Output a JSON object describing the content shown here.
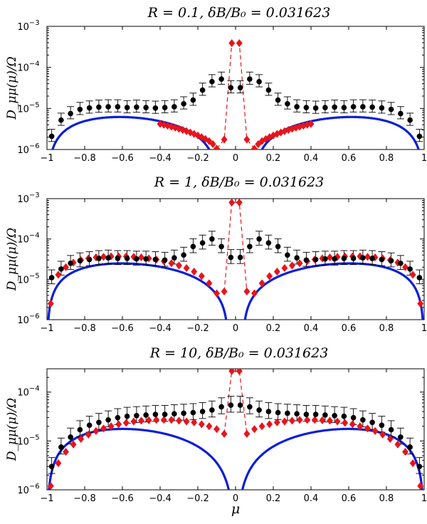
{
  "chart_data": [
    {
      "type": "scatter",
      "title": "R = 0.1, δB/B₀ = 0.031623",
      "ylabel": "D_μμ(μ)/Ω",
      "xlabel": "",
      "xlim": [
        -1,
        1
      ],
      "ylim": [
        1e-06,
        0.001
      ],
      "yscale": "log",
      "x_ticks": [
        "−1",
        "−0.8",
        "−0.6",
        "−0.4",
        "−0.2",
        "0",
        "0.2",
        "0.4",
        "0.6",
        "0.8",
        "1"
      ],
      "y_ticks": [
        {
          "base": "10",
          "exp": "−6"
        },
        {
          "base": "10",
          "exp": "−5"
        },
        {
          "base": "10",
          "exp": "−4"
        },
        {
          "base": "10",
          "exp": "−3"
        }
      ],
      "colors": {
        "theory": "#0a1fd6",
        "diamonds": "#e8141b",
        "points": "#000000"
      },
      "theory": {
        "amp": 9.5e-06,
        "cutoff": 0.1
      },
      "points": {
        "x": [
          -0.975,
          -0.925,
          -0.875,
          -0.825,
          -0.775,
          -0.725,
          -0.675,
          -0.625,
          -0.575,
          -0.525,
          -0.475,
          -0.425,
          -0.375,
          -0.325,
          -0.275,
          -0.225,
          -0.175,
          -0.125,
          -0.075,
          -0.025,
          0.025,
          0.075,
          0.125,
          0.175,
          0.225,
          0.275,
          0.325,
          0.375,
          0.425,
          0.475,
          0.525,
          0.575,
          0.625,
          0.675,
          0.725,
          0.775,
          0.825,
          0.875,
          0.925,
          0.975
        ],
        "y": [
          2.1e-06,
          5.2e-06,
          7.5e-06,
          9.5e-06,
          1.03e-05,
          1.08e-05,
          1.1e-05,
          1.1e-05,
          1.05e-05,
          1.08e-05,
          1.05e-05,
          1.02e-05,
          1.05e-05,
          1.1e-05,
          1.3e-05,
          1.6e-05,
          2.8e-05,
          4.5e-05,
          5.2e-05,
          3.2e-05,
          3.2e-05,
          5.2e-05,
          4.5e-05,
          2.8e-05,
          1.6e-05,
          1.3e-05,
          1.1e-05,
          1.05e-05,
          1.02e-05,
          1.05e-05,
          1.08e-05,
          1.05e-05,
          1.1e-05,
          1.1e-05,
          1.08e-05,
          1.03e-05,
          9.5e-06,
          7.5e-06,
          5.2e-06,
          2.1e-06
        ],
        "err_factor": 0.3
      },
      "diamonds": {
        "x": [
          -0.4,
          -0.38,
          -0.36,
          -0.34,
          -0.32,
          -0.3,
          -0.28,
          -0.26,
          -0.24,
          -0.22,
          -0.2,
          -0.18,
          -0.16,
          -0.14,
          -0.12,
          -0.1,
          -0.06,
          -0.02,
          0.02,
          0.06,
          0.1,
          0.12,
          0.14,
          0.16,
          0.18,
          0.2,
          0.22,
          0.24,
          0.26,
          0.28,
          0.3,
          0.32,
          0.34,
          0.36,
          0.38,
          0.4
        ],
        "y": [
          4.2e-06,
          4e-06,
          3.8e-06,
          3.6e-06,
          3.4e-06,
          3.2e-06,
          3e-06,
          2.8e-06,
          2.6e-06,
          2.4e-06,
          2.2e-06,
          2e-06,
          1.8e-06,
          1.6e-06,
          1.35e-06,
          1.05e-06,
          1.75e-06,
          0.00039,
          0.00039,
          1.75e-06,
          1.05e-06,
          1.35e-06,
          1.6e-06,
          1.8e-06,
          2e-06,
          2.2e-06,
          2.4e-06,
          2.6e-06,
          2.8e-06,
          3e-06,
          3.2e-06,
          3.4e-06,
          3.6e-06,
          3.8e-06,
          4e-06,
          4.2e-06
        ],
        "dashed_core": [
          -0.06,
          -0.02,
          0.02,
          0.06
        ]
      }
    },
    {
      "type": "scatter",
      "title": "R = 1, δB/B₀ = 0.031623",
      "ylabel": "D_μμ(μ)/Ω",
      "xlabel": "",
      "xlim": [
        -1,
        1
      ],
      "ylim": [
        1e-06,
        0.001
      ],
      "yscale": "log",
      "x_ticks": [
        "−1",
        "−0.8",
        "−0.6",
        "−0.4",
        "−0.2",
        "0",
        "0.2",
        "0.4",
        "0.6",
        "0.8",
        "1"
      ],
      "y_ticks": [
        {
          "base": "10",
          "exp": "−6"
        },
        {
          "base": "10",
          "exp": "−5"
        },
        {
          "base": "10",
          "exp": "−4"
        },
        {
          "base": "10",
          "exp": "−3"
        }
      ],
      "colors": {
        "theory": "#0a1fd6",
        "diamonds": "#e8141b",
        "points": "#000000"
      },
      "theory": {
        "amp": 3.7e-05,
        "cutoff": 0.04
      },
      "points": {
        "x": [
          -0.975,
          -0.925,
          -0.875,
          -0.825,
          -0.775,
          -0.725,
          -0.675,
          -0.625,
          -0.575,
          -0.525,
          -0.475,
          -0.425,
          -0.375,
          -0.325,
          -0.275,
          -0.225,
          -0.175,
          -0.125,
          -0.075,
          -0.025,
          0.025,
          0.075,
          0.125,
          0.175,
          0.225,
          0.275,
          0.325,
          0.375,
          0.425,
          0.475,
          0.525,
          0.575,
          0.625,
          0.675,
          0.725,
          0.775,
          0.825,
          0.875,
          0.925,
          0.975
        ],
        "y": [
          1.1e-05,
          1.8e-05,
          2.5e-05,
          2.9e-05,
          3.1e-05,
          3.3e-05,
          3.4e-05,
          3.3e-05,
          3.3e-05,
          3.2e-05,
          3.2e-05,
          3.1e-05,
          3e-05,
          3.4e-05,
          4e-05,
          6.5e-05,
          8e-05,
          0.0001,
          6.5e-05,
          3.5e-05,
          3.5e-05,
          6.5e-05,
          0.0001,
          8e-05,
          6.5e-05,
          4e-05,
          3.4e-05,
          3e-05,
          3.1e-05,
          3.2e-05,
          3.2e-05,
          3.3e-05,
          3.3e-05,
          3.4e-05,
          3.3e-05,
          3.1e-05,
          2.9e-05,
          2.5e-05,
          1.8e-05,
          1.1e-05
        ],
        "err_factor": 0.35
      },
      "diamonds": {
        "x": [
          -0.98,
          -0.94,
          -0.9,
          -0.86,
          -0.82,
          -0.78,
          -0.74,
          -0.7,
          -0.66,
          -0.62,
          -0.58,
          -0.54,
          -0.5,
          -0.46,
          -0.42,
          -0.38,
          -0.34,
          -0.3,
          -0.26,
          -0.22,
          -0.18,
          -0.14,
          -0.1,
          -0.06,
          -0.02,
          0.02,
          0.06,
          0.1,
          0.14,
          0.18,
          0.22,
          0.26,
          0.3,
          0.34,
          0.38,
          0.42,
          0.46,
          0.5,
          0.54,
          0.58,
          0.62,
          0.66,
          0.7,
          0.74,
          0.78,
          0.82,
          0.86,
          0.9,
          0.94,
          0.98
        ],
        "y": [
          2.5e-06,
          1.3e-05,
          2e-05,
          2.6e-05,
          3e-05,
          3.3e-05,
          3.5e-05,
          3.6e-05,
          3.7e-05,
          3.7e-05,
          3.7e-05,
          3.6e-05,
          3.5e-05,
          3.3e-05,
          3.1e-05,
          2.8e-05,
          2.5e-05,
          2.2e-05,
          1.9e-05,
          1.55e-05,
          1.2e-05,
          8e-06,
          4.5e-06,
          5e-06,
          0.0008,
          0.0008,
          5e-06,
          4.5e-06,
          8e-06,
          1.2e-05,
          1.55e-05,
          1.9e-05,
          2.2e-05,
          2.5e-05,
          2.8e-05,
          3.1e-05,
          3.3e-05,
          3.5e-05,
          3.6e-05,
          3.7e-05,
          3.7e-05,
          3.7e-05,
          3.6e-05,
          3.5e-05,
          3.3e-05,
          3e-05,
          2.6e-05,
          2e-05,
          1.3e-05,
          2.5e-06
        ],
        "dashed_core": [
          -0.06,
          -0.02,
          0.02,
          0.06
        ]
      }
    },
    {
      "type": "scatter",
      "title": "R = 10, δB/B₀ = 0.031623",
      "ylabel": "D_μμ(μ)/Ω",
      "xlabel": "μ",
      "xlim": [
        -1,
        1
      ],
      "ylim": [
        1e-06,
        0.0003
      ],
      "yscale": "log",
      "x_ticks": [
        "−1",
        "−0.8",
        "−0.6",
        "−0.4",
        "−0.2",
        "0",
        "0.2",
        "0.4",
        "0.6",
        "0.8",
        "1"
      ],
      "y_ticks": [
        {
          "base": "10",
          "exp": "−6"
        },
        {
          "base": "10",
          "exp": "−5"
        },
        {
          "base": "10",
          "exp": "−4"
        }
      ],
      "colors": {
        "theory": "#0a1fd6",
        "diamonds": "#e8141b",
        "points": "#000000"
      },
      "theory": {
        "amp": 2.6e-05,
        "cutoff": 0.012
      },
      "points": {
        "x": [
          -0.975,
          -0.925,
          -0.875,
          -0.825,
          -0.775,
          -0.725,
          -0.675,
          -0.625,
          -0.575,
          -0.525,
          -0.475,
          -0.425,
          -0.375,
          -0.325,
          -0.275,
          -0.225,
          -0.175,
          -0.125,
          -0.075,
          -0.025,
          0.025,
          0.075,
          0.125,
          0.175,
          0.225,
          0.275,
          0.325,
          0.375,
          0.425,
          0.475,
          0.525,
          0.575,
          0.625,
          0.675,
          0.725,
          0.775,
          0.825,
          0.875,
          0.925,
          0.975
        ],
        "y": [
          3e-06,
          7.5e-06,
          1.2e-05,
          1.7e-05,
          2.1e-05,
          2.4e-05,
          2.7e-05,
          3e-05,
          3.2e-05,
          3.3e-05,
          3.4e-05,
          3.5e-05,
          3.5e-05,
          3.6e-05,
          3.7e-05,
          3.8e-05,
          4e-05,
          4.3e-05,
          5e-05,
          5.4e-05,
          5.4e-05,
          5e-05,
          4.3e-05,
          4e-05,
          3.8e-05,
          3.7e-05,
          3.6e-05,
          3.5e-05,
          3.5e-05,
          3.4e-05,
          3.3e-05,
          3.2e-05,
          3e-05,
          2.7e-05,
          2.4e-05,
          2.1e-05,
          1.7e-05,
          1.2e-05,
          7.5e-06,
          3e-06
        ],
        "err_factor": 0.33
      },
      "diamonds": {
        "x": [
          -0.98,
          -0.94,
          -0.9,
          -0.86,
          -0.82,
          -0.78,
          -0.74,
          -0.7,
          -0.66,
          -0.62,
          -0.58,
          -0.54,
          -0.5,
          -0.46,
          -0.42,
          -0.38,
          -0.34,
          -0.3,
          -0.26,
          -0.22,
          -0.18,
          -0.14,
          -0.1,
          -0.06,
          -0.02,
          0.02,
          0.06,
          0.1,
          0.14,
          0.18,
          0.22,
          0.26,
          0.3,
          0.34,
          0.38,
          0.42,
          0.46,
          0.5,
          0.54,
          0.58,
          0.62,
          0.66,
          0.7,
          0.74,
          0.78,
          0.82,
          0.86,
          0.9,
          0.94,
          0.98
        ],
        "y": [
          1.2e-06,
          3.5e-06,
          6e-06,
          8.5e-06,
          1.1e-05,
          1.35e-05,
          1.6e-05,
          1.8e-05,
          2e-05,
          2.2e-05,
          2.35e-05,
          2.5e-05,
          2.6e-05,
          2.65e-05,
          2.7e-05,
          2.7e-05,
          2.7e-05,
          2.6e-05,
          2.5e-05,
          2.4e-05,
          2.2e-05,
          2e-05,
          1.75e-05,
          1.4e-05,
          0.00027,
          0.00027,
          1.4e-05,
          1.75e-05,
          2e-05,
          2.2e-05,
          2.4e-05,
          2.5e-05,
          2.6e-05,
          2.7e-05,
          2.7e-05,
          2.7e-05,
          2.65e-05,
          2.6e-05,
          2.5e-05,
          2.35e-05,
          2.2e-05,
          2e-05,
          1.8e-05,
          1.6e-05,
          1.35e-05,
          1.1e-05,
          8.5e-06,
          6e-06,
          3.5e-06,
          1.2e-06
        ],
        "dashed_core": [
          -0.06,
          -0.02,
          0.02,
          0.06
        ]
      }
    }
  ]
}
